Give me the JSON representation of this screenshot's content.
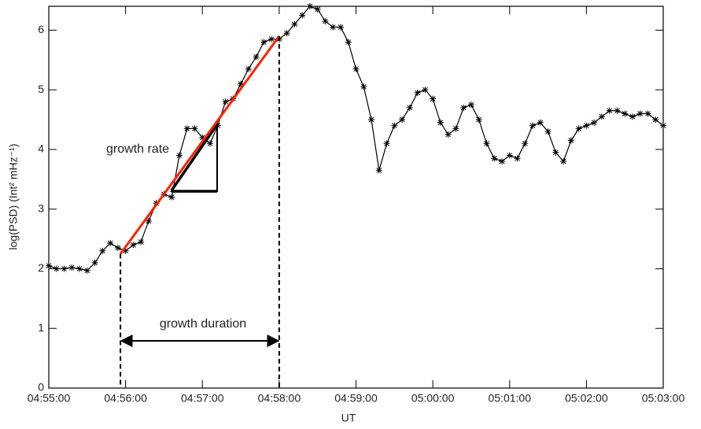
{
  "chart_data": {
    "type": "line",
    "xlabel": "UT",
    "ylabel": "log(PSD)  (Int² mHz⁻¹)",
    "xlim": [
      "04:55:00",
      "05:03:00"
    ],
    "xticks": [
      "04:55:00",
      "04:56:00",
      "04:57:00",
      "04:58:00",
      "04:59:00",
      "05:00:00",
      "05:01:00",
      "05:02:00",
      "05:03:00"
    ],
    "ylim": [
      0,
      6.4
    ],
    "yticks": [
      0,
      1,
      2,
      3,
      4,
      5,
      6
    ],
    "color": "#000000",
    "x": [
      "04:55:00",
      "04:55:06",
      "04:55:12",
      "04:55:18",
      "04:55:24",
      "04:55:30",
      "04:55:36",
      "04:55:42",
      "04:55:48",
      "04:55:54",
      "04:56:00",
      "04:56:06",
      "04:56:12",
      "04:56:18",
      "04:56:24",
      "04:56:30",
      "04:56:36",
      "04:56:42",
      "04:56:48",
      "04:56:54",
      "04:57:00",
      "04:57:06",
      "04:57:12",
      "04:57:18",
      "04:57:24",
      "04:57:30",
      "04:57:36",
      "04:57:42",
      "04:57:48",
      "04:57:54",
      "04:58:00",
      "04:58:06",
      "04:58:12",
      "04:58:18",
      "04:58:24",
      "04:58:30",
      "04:58:36",
      "04:58:42",
      "04:58:48",
      "04:58:54",
      "04:59:00",
      "04:59:06",
      "04:59:12",
      "04:59:18",
      "04:59:24",
      "04:59:30",
      "04:59:36",
      "04:59:42",
      "04:59:48",
      "04:59:54",
      "05:00:00",
      "05:00:06",
      "05:00:12",
      "05:00:18",
      "05:00:24",
      "05:00:30",
      "05:00:36",
      "05:00:42",
      "05:00:48",
      "05:00:54",
      "05:01:00",
      "05:01:06",
      "05:01:12",
      "05:01:18",
      "05:01:24",
      "05:01:30",
      "05:01:36",
      "05:01:42",
      "05:01:48",
      "05:01:54",
      "05:02:00",
      "05:02:06",
      "05:02:12",
      "05:02:18",
      "05:02:24",
      "05:02:30",
      "05:02:36",
      "05:02:42",
      "05:02:48",
      "05:02:54",
      "05:03:00"
    ],
    "values": [
      2.05,
      2.0,
      2.0,
      2.02,
      2.0,
      1.97,
      2.1,
      2.3,
      2.43,
      2.35,
      2.3,
      2.4,
      2.45,
      2.8,
      3.1,
      3.25,
      3.2,
      3.9,
      4.35,
      4.35,
      4.2,
      4.1,
      4.4,
      4.8,
      4.85,
      5.1,
      5.35,
      5.55,
      5.8,
      5.85,
      5.85,
      5.95,
      6.1,
      6.25,
      6.4,
      6.35,
      6.15,
      6.05,
      6.05,
      5.8,
      5.35,
      5.05,
      4.5,
      3.65,
      4.1,
      4.4,
      4.5,
      4.7,
      4.95,
      5.0,
      4.85,
      4.45,
      4.25,
      4.35,
      4.7,
      4.75,
      4.5,
      4.1,
      3.85,
      3.8,
      3.9,
      3.85,
      4.1,
      4.4,
      4.45,
      4.3,
      3.95,
      3.8,
      4.15,
      4.35,
      4.4,
      4.45,
      4.55,
      4.65,
      4.65,
      4.6,
      4.55,
      4.6,
      4.6,
      4.5,
      4.4
    ],
    "fit": {
      "color": "#ff2000",
      "x": [
        "04:55:56",
        "04:58:00"
      ],
      "values": [
        2.25,
        5.9
      ]
    },
    "annotations": [
      "growth rate",
      "growth duration"
    ]
  }
}
